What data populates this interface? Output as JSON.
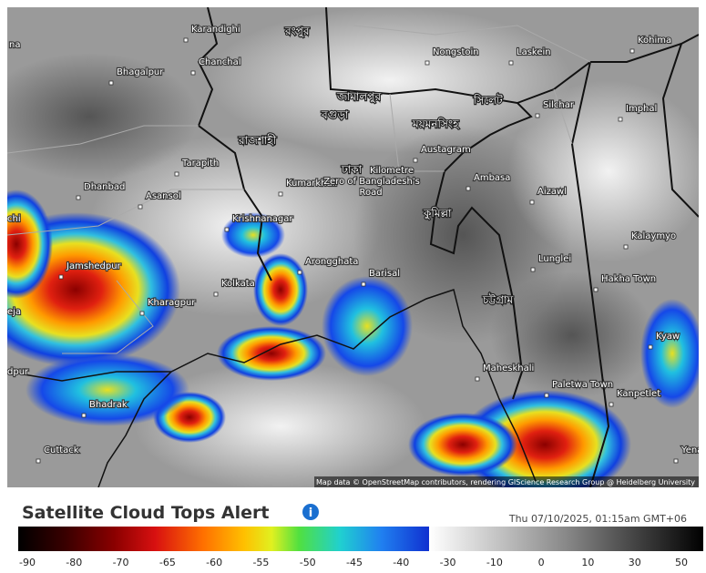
{
  "map": {
    "places": [
      "Karandighi",
      "Bhagalpur",
      "Chanchal",
      "Nongstoin",
      "Laskein",
      "Kohima",
      "Silchar",
      "Imphal",
      "Austagram",
      "Tarapith",
      "Dhanbad",
      "Asansol",
      "Kumarkhali",
      "Ambasa",
      "Aizawl",
      "Krishnanagar",
      "Kalaymyo",
      "Jamshedpur",
      "Arongghata",
      "Barisal",
      "Lunglei",
      "Hakha Town",
      "Kolkata",
      "Kharagpur",
      "Kyaw",
      "Maheskhali",
      "Paletwa Town",
      "Kanpetlet",
      "Bhadrak",
      "Cuttack",
      "Yenang",
      "Kilometre",
      "Zero of Bangladesh's",
      "Road",
      "na",
      "chi",
      "eja",
      "dpur"
    ],
    "bengali_places": [
      "রংপুর",
      "জামালপুর",
      "বগুড়া",
      "ময়মনসিংহ",
      "সিলেট",
      "রাজশাহী",
      "ঢাকা",
      "কুমিল্লা",
      "চট্টগ্রাম"
    ],
    "attribution": "Map data © OpenStreetMap contributors, rendering GIScience Research Group @ Heidelberg University"
  },
  "legend": {
    "title": "Satellite Cloud Tops Alert",
    "info": "i",
    "timestamp": "Thu 07/10/2025, 01:15am GMT+06",
    "ticks": [
      -90,
      -80,
      -70,
      -65,
      -60,
      -55,
      -50,
      -45,
      -40,
      -30,
      -10,
      0,
      10,
      30,
      50
    ]
  }
}
